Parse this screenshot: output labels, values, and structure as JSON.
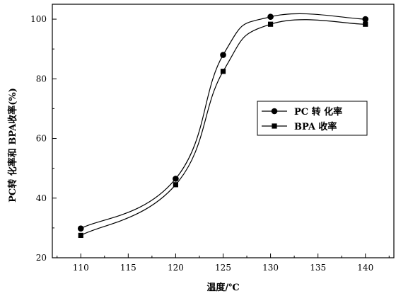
{
  "chart_data": {
    "type": "line",
    "xlabel": "温度/℃",
    "ylabel": "PC转  化率和 BPA收率(%)",
    "xlim": [
      107,
      143
    ],
    "ylim": [
      20,
      105
    ],
    "xticks": [
      110,
      115,
      120,
      125,
      130,
      135,
      140
    ],
    "yticks": [
      20,
      40,
      60,
      80,
      100
    ],
    "grid": false,
    "legend_position": "right-middle",
    "x": [
      110,
      120,
      125,
      130,
      140
    ],
    "series": [
      {
        "name": "PC 转 化率",
        "marker": "circle",
        "values": [
          29.8,
          46.5,
          88.0,
          100.8,
          100.0
        ]
      },
      {
        "name": "BPA 收率",
        "marker": "square",
        "values": [
          27.5,
          44.5,
          82.5,
          98.3,
          98.3
        ]
      }
    ]
  }
}
